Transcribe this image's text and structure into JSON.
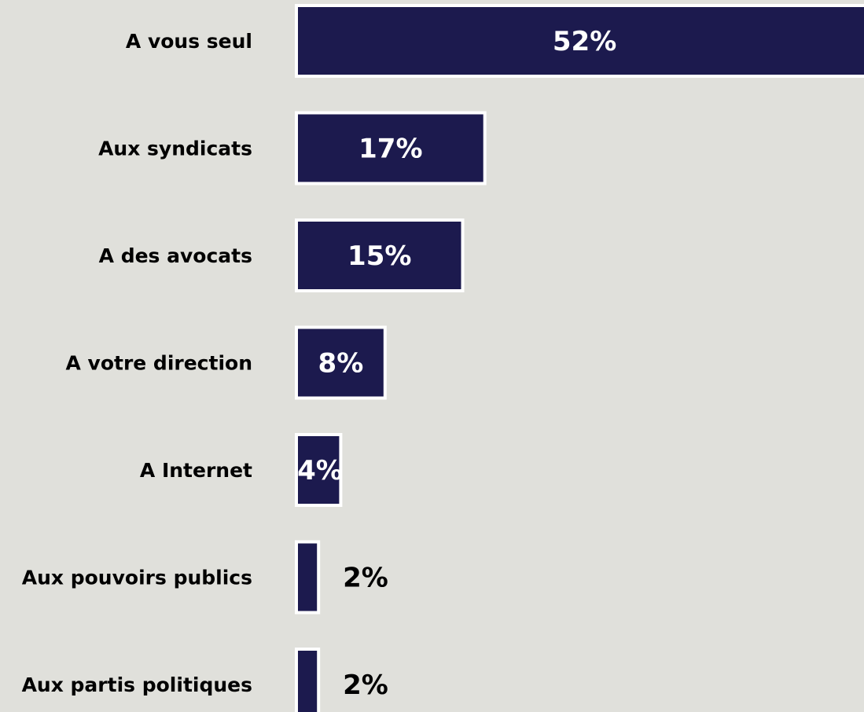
{
  "chart_data": {
    "type": "bar",
    "orientation": "horizontal",
    "categories": [
      "A vous seul",
      "Aux syndicats",
      "A des avocats",
      "A votre direction",
      "A Internet",
      "Aux pouvoirs publics",
      "Aux partis politiques"
    ],
    "values": [
      52,
      17,
      15,
      8,
      4,
      2,
      2
    ],
    "value_labels": [
      "52%",
      "17%",
      "15%",
      "8%",
      "4%",
      "2%",
      "2%"
    ],
    "title": "",
    "xlabel": "",
    "ylabel": "",
    "grid": false,
    "legend": "none"
  },
  "colors": {
    "background": "#e0e0db",
    "bar_fill": "#1c1a4e",
    "bar_border": "#ffffff",
    "inside_label": "#ffffff",
    "outside_label": "#000000",
    "category_label": "#000000"
  }
}
